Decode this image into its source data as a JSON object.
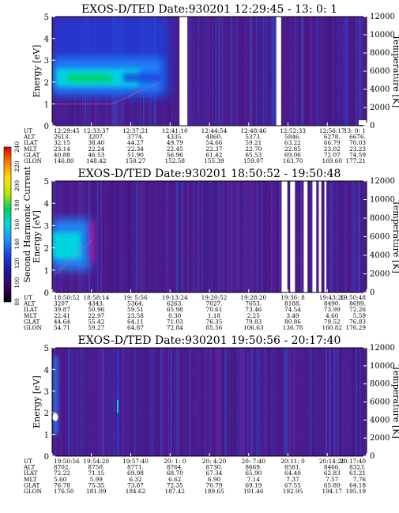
{
  "chart_data": [
    {
      "type": "heatmap",
      "title": "EXOS-D/TED   Date:930201  12:29:45 - 13: 0: 1",
      "ylabel": "Energy [eV]",
      "y2label": "Temperature [K]",
      "ylim": [
        0,
        5
      ],
      "y2lim": [
        0,
        12000
      ],
      "yticks": [
        "0",
        "1",
        "2",
        "3",
        "4",
        "5"
      ],
      "y2ticks": [
        "0",
        "2000",
        "4000",
        "6000",
        "8000",
        "10000",
        "12000"
      ],
      "gaps": [
        [
          0.405,
          0.43
        ],
        [
          0.713,
          0.728
        ]
      ],
      "table": {
        "row_labels": [
          "UT",
          "ALT",
          "ILAT",
          "MLT",
          "GLAT",
          "GLON"
        ],
        "columns": [
          [
            "12:29:45",
            "2613.",
            "32.15",
            "23.14",
            "40.88",
            "146.80"
          ],
          [
            "12:33:37",
            "3207.",
            "38.40",
            "22.24",
            "46.53",
            "148.42"
          ],
          [
            "12:37:21",
            "3774.",
            "44.27",
            "22.34",
            "51.90",
            "150.27"
          ],
          [
            "12:41:10",
            "4335.",
            "49.79",
            "22.45",
            "56.96",
            "152.58"
          ],
          [
            "12:44:54",
            "4860.",
            "54.66",
            "22.37",
            "61.42",
            "155.39"
          ],
          [
            "12:48:46",
            "5373.",
            "59.21",
            "22.70",
            "65.53",
            "159.07"
          ],
          [
            "12:52:33",
            "5846.",
            "63.22",
            "22.85",
            "69.06",
            "163.70"
          ],
          [
            "12:56:17",
            "6278.",
            "66.79",
            "23.02",
            "72.07",
            "169.60"
          ],
          [
            "13: 0: 1",
            "6676.",
            "70.03",
            "23.23",
            "74.59",
            "177.21"
          ]
        ]
      }
    },
    {
      "type": "heatmap",
      "title": "EXOS-D/TED   Date:930201  18:50:52 - 19:50:48",
      "ylabel": "Energy [eV]",
      "y2label": "Temperature [K]",
      "ylim": [
        0,
        5
      ],
      "y2lim": [
        0,
        12000
      ],
      "yticks": [
        "0",
        "1",
        "2",
        "3",
        "4",
        "5"
      ],
      "y2ticks": [
        "0",
        "2000",
        "4000",
        "6000",
        "8000",
        "10000",
        "12000"
      ],
      "gaps": [
        [
          0.73,
          0.748
        ],
        [
          0.757,
          0.772
        ],
        [
          0.8,
          0.812
        ],
        [
          0.828,
          0.84
        ],
        [
          0.848,
          0.856
        ],
        [
          0.866,
          0.872
        ]
      ],
      "table": {
        "row_labels": [
          "UT",
          "ALT",
          "ILAT",
          "MLT",
          "GLAT",
          "GLON"
        ],
        "columns": [
          [
            "18:50:52",
            "3207.",
            "39.87",
            "22.41",
            "44.64",
            "54.71"
          ],
          [
            "18:58:14",
            "4343.",
            "50.96",
            "22.97",
            "55.42",
            "59.27"
          ],
          [
            "19: 5:56",
            "5364.",
            "59.51",
            "23.58",
            "64.11",
            "64.87"
          ],
          [
            "19:13:24",
            "6263.",
            "65.98",
            "0.30",
            "71.03",
            "72.84"
          ],
          [
            "19:20:52",
            "7027.",
            "70.61",
            "1.18",
            "76.35",
            "85.56"
          ],
          [
            "19:28:20",
            "7653.",
            "73.46",
            "2.25",
            "79.83",
            "106.63"
          ],
          [
            "19:36: 8",
            "8188.",
            "74.54",
            "3.49",
            "80.86",
            "136.78"
          ],
          [
            "19:43:20",
            "8490.",
            "73.99",
            "4.60",
            "79.52",
            "160.82"
          ],
          [
            "19:50:48",
            "8699.",
            "72.26",
            "5.59",
            "76.83",
            "176.29"
          ]
        ]
      }
    },
    {
      "type": "heatmap",
      "title": "EXOS-D/TED   Date:930201  19:50:56 - 20:17:40",
      "ylabel": "Energy [eV]",
      "y2label": "Temperature [K]",
      "ylim": [
        0,
        5
      ],
      "y2lim": [
        0,
        12000
      ],
      "yticks": [
        "0",
        "1",
        "2",
        "3",
        "4",
        "5"
      ],
      "y2ticks": [
        "0",
        "2000",
        "4000",
        "6000",
        "8000",
        "10000",
        "12000"
      ],
      "gaps": [],
      "table": {
        "row_labels": [
          "UT",
          "ALT",
          "ILAT",
          "MLT",
          "GLAT",
          "GLON"
        ],
        "columns": [
          [
            "19:50:56",
            "8702.",
            "72.22",
            "5.60",
            "76.78",
            "176.50"
          ],
          [
            "19:54:20",
            "8750.",
            "71.15",
            "5.99",
            "75.35",
            "181.09"
          ],
          [
            "19:57:40",
            "8771.",
            "69.98",
            "6.32",
            "73.87",
            "184.62"
          ],
          [
            "20: 1: 0",
            "8764.",
            "68.70",
            "6.62",
            "72.35",
            "187.42"
          ],
          [
            "20: 4:20",
            "8730.",
            "67.34",
            "6.90",
            "70.79",
            "189.65"
          ],
          [
            "20: 7:40",
            "8669.",
            "65.90",
            "7.14",
            "69.19",
            "191.46"
          ],
          [
            "20:11: 0",
            "8581.",
            "64.40",
            "7.37",
            "67.55",
            "192.95"
          ],
          [
            "20:14:20",
            "8466.",
            "62.83",
            "7.57",
            "65.89",
            "194.17"
          ],
          [
            "20:17:40",
            "8323.",
            "61.21",
            "7.76",
            "64.18",
            "195.19"
          ]
        ]
      }
    }
  ],
  "colorbar": {
    "label": "Second Harmonic Current",
    "ticks": [
      "80",
      "100",
      "120",
      "140",
      "160",
      "180",
      "200",
      "220",
      "240"
    ],
    "min": 80,
    "max": 240,
    "colors": [
      "#000000",
      "#3a0066",
      "#1a1a9e",
      "#1e3fe0",
      "#1f8fff",
      "#00d8e0",
      "#00d060",
      "#b8e800",
      "#ffe000",
      "#ff8000",
      "#e00000"
    ]
  }
}
